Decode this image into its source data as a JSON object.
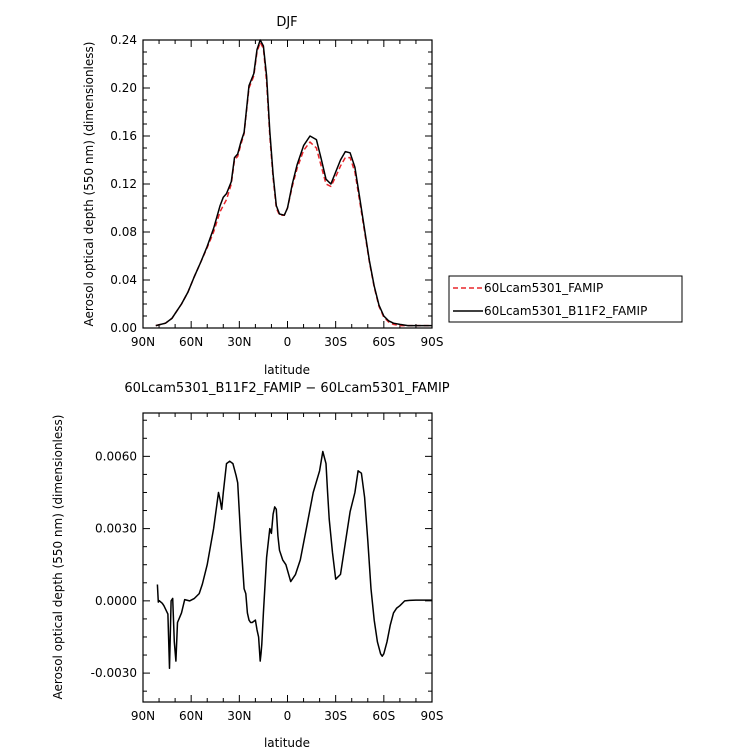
{
  "chart_data": [
    {
      "type": "line",
      "title": "DJF",
      "xlabel": "latitude",
      "ylabel": "Aerosol optical depth (550 nm) (dimensionless)",
      "xlim": [
        90,
        -90
      ],
      "ylim": [
        0,
        0.24
      ],
      "xticks": [
        90,
        60,
        30,
        0,
        -30,
        -60,
        -90
      ],
      "xtick_labels": [
        "90N",
        "60N",
        "30N",
        "0",
        "30S",
        "60S",
        "90S"
      ],
      "yticks": [
        0,
        0.04,
        0.08,
        0.12,
        0.16,
        0.2,
        0.24
      ],
      "ytick_labels": [
        "0.00",
        "0.04",
        "0.08",
        "0.12",
        "0.16",
        "0.20",
        "0.24"
      ],
      "legend_position": "right",
      "series": [
        {
          "name": "60Lcam5301_FAMIP",
          "color": "#e8262c",
          "style": "dashed",
          "x": [
            82,
            76,
            72,
            70,
            66,
            62,
            58,
            54,
            50,
            46,
            42,
            40,
            38,
            35,
            33,
            31,
            29,
            27,
            24,
            21,
            19,
            17,
            15,
            13,
            11,
            9,
            7,
            5,
            2,
            0,
            -3,
            -6,
            -10,
            -14,
            -18,
            -21,
            -24,
            -27,
            -30,
            -33,
            -36,
            -39,
            -42,
            -45,
            -48,
            -51,
            -54,
            -57,
            -60,
            -63,
            -66,
            -70,
            -75,
            -80,
            -85,
            -90
          ],
          "y": [
            0.002,
            0.004,
            0.008,
            0.012,
            0.02,
            0.03,
            0.043,
            0.055,
            0.067,
            0.08,
            0.097,
            0.102,
            0.107,
            0.12,
            0.14,
            0.143,
            0.153,
            0.162,
            0.2,
            0.21,
            0.23,
            0.238,
            0.233,
            0.205,
            0.16,
            0.125,
            0.1,
            0.094,
            0.094,
            0.1,
            0.118,
            0.133,
            0.148,
            0.155,
            0.15,
            0.135,
            0.12,
            0.118,
            0.126,
            0.135,
            0.142,
            0.142,
            0.13,
            0.105,
            0.08,
            0.055,
            0.034,
            0.018,
            0.009,
            0.005,
            0.003,
            0.002,
            0.002,
            0.002,
            0.002,
            0.002
          ]
        },
        {
          "name": "60Lcam5301_B11F2_FAMIP",
          "color": "#000000",
          "style": "solid",
          "x": [
            82,
            76,
            72,
            70,
            66,
            62,
            58,
            54,
            50,
            46,
            42,
            40,
            38,
            35,
            33,
            31,
            29,
            27,
            24,
            21,
            19,
            17,
            15,
            13,
            11,
            9,
            7,
            5,
            2,
            0,
            -3,
            -6,
            -10,
            -14,
            -18,
            -21,
            -24,
            -27,
            -30,
            -33,
            -36,
            -39,
            -42,
            -45,
            -48,
            -51,
            -54,
            -57,
            -60,
            -63,
            -66,
            -70,
            -75,
            -80,
            -85,
            -90
          ],
          "y": [
            0.002,
            0.004,
            0.008,
            0.012,
            0.02,
            0.03,
            0.043,
            0.055,
            0.068,
            0.083,
            0.102,
            0.109,
            0.112,
            0.122,
            0.142,
            0.145,
            0.155,
            0.163,
            0.202,
            0.212,
            0.232,
            0.24,
            0.235,
            0.21,
            0.164,
            0.128,
            0.102,
            0.095,
            0.094,
            0.1,
            0.12,
            0.136,
            0.152,
            0.16,
            0.157,
            0.141,
            0.124,
            0.12,
            0.13,
            0.14,
            0.147,
            0.146,
            0.134,
            0.108,
            0.082,
            0.056,
            0.035,
            0.019,
            0.01,
            0.006,
            0.004,
            0.003,
            0.002,
            0.002,
            0.002,
            0.002
          ]
        }
      ]
    },
    {
      "type": "line",
      "title": "60Lcam5301_B11F2_FAMIP − 60Lcam5301_FAMIP",
      "xlabel": "latitude",
      "ylabel": "Aerosol optical depth (550 nm) (dimensionless)",
      "xlim": [
        90,
        -90
      ],
      "ylim": [
        -0.0042,
        0.0078
      ],
      "xticks": [
        90,
        60,
        30,
        0,
        -30,
        -60,
        -90
      ],
      "xtick_labels": [
        "90N",
        "60N",
        "30N",
        "0",
        "30S",
        "60S",
        "90S"
      ],
      "yticks": [
        -0.003,
        0.0,
        0.003,
        0.006
      ],
      "ytick_labels": [
        "-0.0030",
        "0.0000",
        "0.0030",
        "0.0060"
      ],
      "series": [
        {
          "name": "",
          "color": "#000000",
          "style": "solid",
          "x": [
            81,
            80.5,
            80,
            78,
            77,
            74.5,
            73.5,
            72.5,
            71.5,
            70.5,
            69.5,
            68.5,
            66,
            64,
            61,
            58,
            55,
            53,
            50,
            46,
            43,
            42,
            41,
            40,
            38,
            36,
            34,
            32,
            31,
            29,
            27,
            26,
            25,
            24,
            23,
            22,
            20,
            19,
            18,
            17,
            16.5,
            16,
            15,
            13,
            11,
            10,
            9,
            8,
            7,
            6,
            5,
            3,
            1,
            -2,
            -5,
            -8,
            -12,
            -16,
            -20,
            -22,
            -24,
            -25,
            -26,
            -28,
            -30,
            -33,
            -36,
            -39,
            -42,
            -44,
            -46,
            -48,
            -50,
            -52,
            -54,
            -56,
            -58,
            -59,
            -60,
            -62,
            -64,
            -66,
            -68,
            -70,
            -73,
            -76,
            -80,
            -85,
            -90
          ],
          "y": [
            0.00068,
            -5e-05,
            1e-05,
            -0.0001,
            -0.0002,
            -0.00055,
            -0.0028,
            0.0,
            0.0001,
            -0.0017,
            -0.0025,
            -0.0009,
            -0.0005,
            5e-05,
            0.0,
            0.0001,
            0.0003,
            0.0007,
            0.0015,
            0.003,
            0.0045,
            0.0042,
            0.0038,
            0.0045,
            0.0057,
            0.0058,
            0.0057,
            0.0052,
            0.0049,
            0.0025,
            0.0005,
            0.0003,
            -0.0005,
            -0.0008,
            -0.0009,
            -0.0009,
            -0.0008,
            -0.0012,
            -0.0015,
            -0.0025,
            -0.0022,
            -0.0018,
            -0.0005,
            0.0018,
            0.003,
            0.0028,
            0.0036,
            0.0039,
            0.0038,
            0.0027,
            0.0021,
            0.0017,
            0.0015,
            0.0008,
            0.0011,
            0.0017,
            0.0031,
            0.0045,
            0.0054,
            0.0062,
            0.0057,
            0.0045,
            0.0034,
            0.002,
            0.0009,
            0.0011,
            0.0024,
            0.0037,
            0.0045,
            0.0054,
            0.0053,
            0.0043,
            0.0025,
            0.0005,
            -0.0008,
            -0.0017,
            -0.0022,
            -0.0023,
            -0.0022,
            -0.0017,
            -0.001,
            -0.0005,
            -0.0003,
            -0.0002,
            0.0,
            2e-05,
            3e-05,
            3e-05,
            3e-05
          ]
        }
      ]
    }
  ]
}
